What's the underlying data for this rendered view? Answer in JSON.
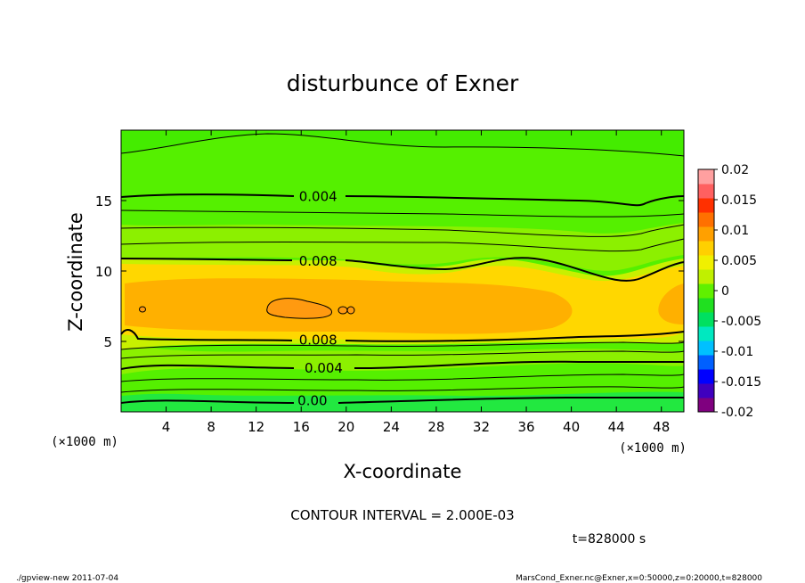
{
  "chart_data": {
    "type": "heatmap",
    "title": "disturbunce of Exner",
    "xlabel": "X-coordinate",
    "ylabel": "Z-coordinate",
    "x_unit_left": "(×1000 m)",
    "x_unit_right": "(×1000 m)",
    "xlim": [
      0,
      50
    ],
    "ylim": [
      0,
      20
    ],
    "xticks": [
      4,
      8,
      12,
      16,
      20,
      24,
      28,
      32,
      36,
      40,
      44,
      48
    ],
    "yticks": [
      5,
      10,
      15
    ],
    "colorbar": {
      "ticks": [
        "0.02",
        "0.015",
        "0.01",
        "0.005",
        "0",
        "-0.005",
        "-0.01",
        "-0.015",
        "-0.02"
      ],
      "range": [
        -0.02,
        0.02
      ],
      "colors": [
        "#7f007f",
        "#3f00bf",
        "#0000ff",
        "#0060ff",
        "#00c0ff",
        "#00e8c0",
        "#00e060",
        "#20e020",
        "#60f000",
        "#c0f000",
        "#f0f000",
        "#ffd000",
        "#ffa000",
        "#ff7000",
        "#ff3000",
        "#ff6060",
        "#ffa0a0"
      ]
    },
    "contour_labels": [
      {
        "text": "0.004",
        "x": 17.5,
        "y": 15.3
      },
      {
        "text": "0.008",
        "x": 17.5,
        "y": 10.7
      },
      {
        "text": "0.008",
        "x": 17.5,
        "y": 5.1
      },
      {
        "text": "0.004",
        "x": 18.0,
        "y": 3.1
      },
      {
        "text": "0.00",
        "x": 17.0,
        "y": 0.8
      }
    ],
    "contour_interval": "CONTOUR INTERVAL = 2.000E-03",
    "time": "t=828000 s"
  },
  "footer": {
    "left": "./gpview-new   2011-07-04",
    "right": "MarsCond_Exner.nc@Exner,x=0:50000,z=0:20000,t=828000"
  }
}
